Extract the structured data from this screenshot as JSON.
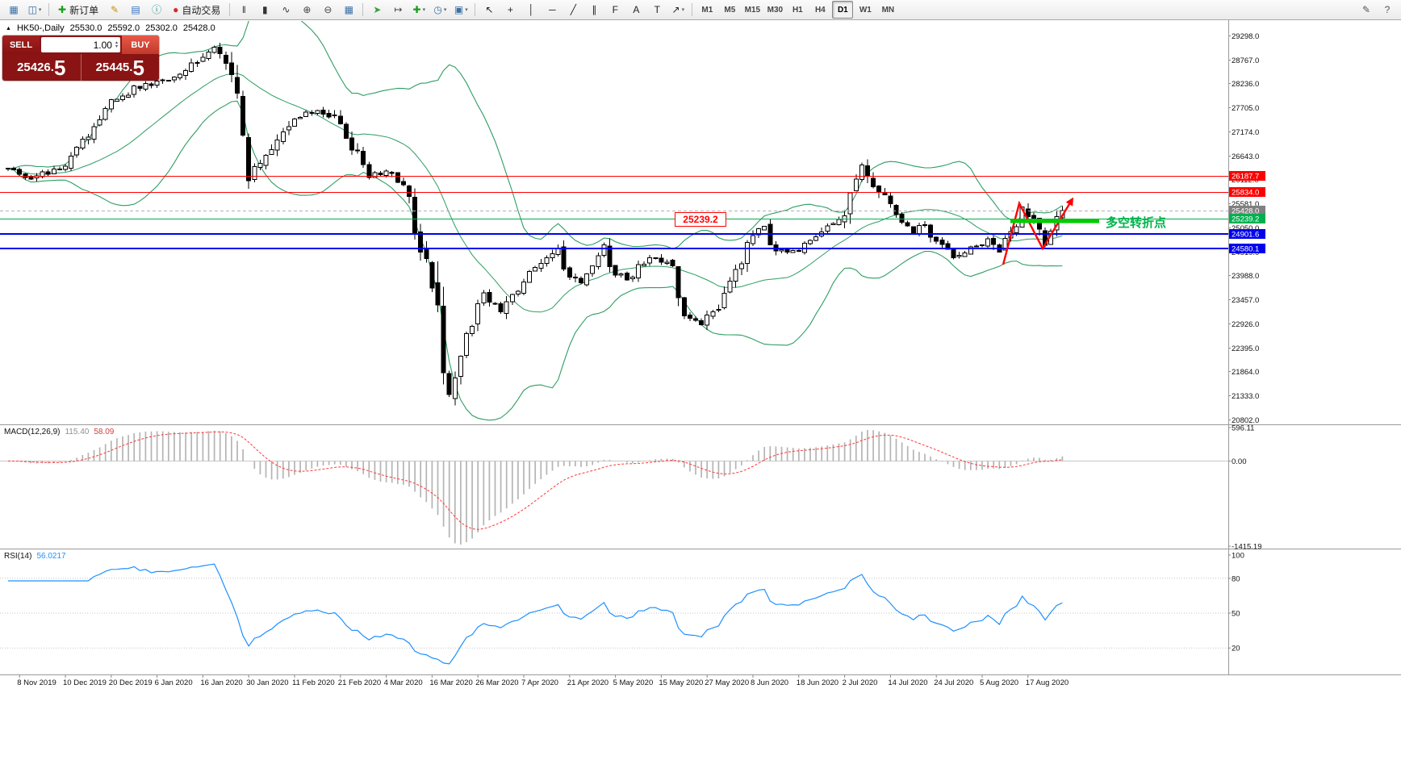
{
  "toolbar": {
    "caret_glyph": "▾",
    "items": [
      {
        "type": "btn",
        "name": "new-chart",
        "glyph": "▦",
        "color": "#3b6ea5"
      },
      {
        "type": "btn",
        "name": "profiles",
        "glyph": "◫",
        "color": "#3b6ea5",
        "caret": true
      },
      {
        "type": "sep"
      },
      {
        "type": "btn",
        "name": "new-order",
        "glyph": "✚",
        "color": "#18a018",
        "label": "新订单"
      },
      {
        "type": "btn",
        "name": "metaeditor",
        "glyph": "✎",
        "color": "#c79100"
      },
      {
        "type": "btn",
        "name": "market-watch",
        "glyph": "▤",
        "color": "#2f6fc4"
      },
      {
        "type": "btn",
        "name": "data-window",
        "glyph": "ⓘ",
        "color": "#1f8f8f"
      },
      {
        "type": "btn",
        "name": "autotrading",
        "glyph": "●",
        "color": "#d42a2a",
        "label": "自动交易"
      },
      {
        "type": "sep"
      },
      {
        "type": "btn",
        "name": "bar-chart-mode",
        "glyph": "‖",
        "color": "#333333"
      },
      {
        "type": "btn",
        "name": "candlestick-mode",
        "glyph": "▮",
        "color": "#333333"
      },
      {
        "type": "btn",
        "name": "line-chart-mode",
        "glyph": "∿",
        "color": "#333333"
      },
      {
        "type": "btn",
        "name": "zoom-in",
        "glyph": "⊕",
        "color": "#444444"
      },
      {
        "type": "btn",
        "name": "zoom-out",
        "glyph": "⊖",
        "color": "#444444"
      },
      {
        "type": "btn",
        "name": "tile-windows",
        "glyph": "▦",
        "color": "#3b6ea5"
      },
      {
        "type": "sep"
      },
      {
        "type": "btn",
        "name": "auto-scroll",
        "glyph": "➤",
        "color": "#3aa03a"
      },
      {
        "type": "btn",
        "name": "chart-shift",
        "glyph": "↦",
        "color": "#444444"
      },
      {
        "type": "btn",
        "name": "indicators",
        "glyph": "✚",
        "color": "#18a018",
        "caret": true
      },
      {
        "type": "btn",
        "name": "periods",
        "glyph": "◷",
        "color": "#3b6ea5",
        "caret": true
      },
      {
        "type": "btn",
        "name": "templates",
        "glyph": "▣",
        "color": "#3b6ea5",
        "caret": true
      },
      {
        "type": "sep"
      },
      {
        "type": "btn",
        "name": "cursor-tool",
        "glyph": "↖",
        "color": "#222222"
      },
      {
        "type": "btn",
        "name": "crosshair-tool",
        "glyph": "+",
        "color": "#222222"
      },
      {
        "type": "btn",
        "name": "vertical-line-tool",
        "glyph": "│",
        "color": "#222222"
      },
      {
        "type": "btn",
        "name": "horizontal-line-tool",
        "glyph": "─",
        "color": "#222222"
      },
      {
        "type": "btn",
        "name": "trendline-tool",
        "glyph": "╱",
        "color": "#222222"
      },
      {
        "type": "btn",
        "name": "channel-tool",
        "glyph": "∥",
        "color": "#222222"
      },
      {
        "type": "btn",
        "name": "fibonacci-tool",
        "glyph": "F",
        "color": "#222222"
      },
      {
        "type": "btn",
        "name": "text-tool",
        "glyph": "A",
        "color": "#222222"
      },
      {
        "type": "btn",
        "name": "label-tool",
        "glyph": "T",
        "color": "#222222"
      },
      {
        "type": "btn",
        "name": "arrows-tool",
        "glyph": "↗",
        "color": "#222222",
        "caret": true
      },
      {
        "type": "sep"
      }
    ],
    "timeframes": [
      "M1",
      "M5",
      "M15",
      "M30",
      "H1",
      "H4",
      "D1",
      "W1",
      "MN"
    ],
    "active_timeframe": "D1",
    "right_items": [
      {
        "type": "btn",
        "name": "edit",
        "glyph": "✎",
        "color": "#555555"
      },
      {
        "type": "btn",
        "name": "help",
        "glyph": "?",
        "color": "#555555"
      }
    ]
  },
  "chart_header": {
    "collapse_arrow": "▲",
    "symbol": "HK50-,Daily",
    "open": "25530.0",
    "high": "25592.0",
    "low": "25302.0",
    "close": "25428.0"
  },
  "trade_panel": {
    "sell_label": "SELL",
    "buy_label": "BUY",
    "volume": "1.00",
    "volume_up_glyph": "▴",
    "volume_down_glyph": "▾",
    "sell_price_base": "25426.",
    "sell_price_big": "5",
    "buy_price_base": "25445.",
    "buy_price_big": "5"
  },
  "indicator_labels": {
    "macd_name": "MACD(12,26,9)",
    "macd_value_main": "115.40",
    "macd_value_signal": "58.09",
    "rsi_name": "RSI(14)",
    "rsi_value": "56.0217"
  },
  "annotations": {
    "price_flag_label": "25239.2",
    "turning_point_text": "多空转折点"
  },
  "chart_data": {
    "type": "candlestick",
    "symbol": "HK50-",
    "period": "Daily",
    "ohlc_display": {
      "open": 25530.0,
      "high": 25592.0,
      "low": 25302.0,
      "close": 25428.0
    },
    "num_candles": 185,
    "last_close": 25428.0,
    "x_axis": {
      "labels": [
        "8 Nov 2019",
        "10 Dec 2019",
        "20 Dec 2019",
        "6 Jan 2020",
        "16 Jan 2020",
        "30 Jan 2020",
        "11 Feb 2020",
        "21 Feb 2020",
        "4 Mar 2020",
        "16 Mar 2020",
        "26 Mar 2020",
        "7 Apr 2020",
        "21 Apr 2020",
        "5 May 2020",
        "15 May 2020",
        "27 May 2020",
        "8 Jun 2020",
        "18 Jun 2020",
        "2 Jul 2020",
        "14 Jul 2020",
        "24 Jul 2020",
        "5 Aug 2020",
        "17 Aug 2020"
      ],
      "label_indices": [
        2,
        10,
        18,
        26,
        34,
        42,
        50,
        58,
        66,
        74,
        82,
        90,
        98,
        106,
        114,
        122,
        130,
        138,
        146,
        154,
        162,
        170,
        178
      ]
    },
    "y_axis": {
      "tick_labels": [
        "29298.0",
        "28767.0",
        "28236.0",
        "27705.0",
        "27174.0",
        "26643.0",
        "26112.0",
        "25581.0",
        "25050.0",
        "24519.0",
        "23988.0",
        "23457.0",
        "22926.0",
        "22395.0",
        "21864.0",
        "21333.0",
        "20802.0"
      ]
    },
    "close_anchors": [
      [
        0,
        26350
      ],
      [
        4,
        26150
      ],
      [
        10,
        26450
      ],
      [
        14,
        27100
      ],
      [
        18,
        27800
      ],
      [
        22,
        28150
      ],
      [
        26,
        28250
      ],
      [
        30,
        28450
      ],
      [
        34,
        28850
      ],
      [
        36,
        29000
      ],
      [
        38,
        28800
      ],
      [
        40,
        27900
      ],
      [
        42,
        26250
      ],
      [
        44,
        26500
      ],
      [
        47,
        27000
      ],
      [
        50,
        27450
      ],
      [
        54,
        27650
      ],
      [
        57,
        27500
      ],
      [
        60,
        26900
      ],
      [
        63,
        26200
      ],
      [
        66,
        26300
      ],
      [
        68,
        26150
      ],
      [
        70,
        25700
      ],
      [
        72,
        24600
      ],
      [
        74,
        23950
      ],
      [
        75,
        23100
      ],
      [
        76,
        21900
      ],
      [
        77,
        21300
      ],
      [
        79,
        22400
      ],
      [
        81,
        23000
      ],
      [
        83,
        23550
      ],
      [
        86,
        23200
      ],
      [
        89,
        23700
      ],
      [
        91,
        24100
      ],
      [
        94,
        24350
      ],
      [
        96,
        24550
      ],
      [
        98,
        24000
      ],
      [
        100,
        23850
      ],
      [
        102,
        24300
      ],
      [
        104,
        24600
      ],
      [
        106,
        24050
      ],
      [
        108,
        23900
      ],
      [
        110,
        24250
      ],
      [
        113,
        24400
      ],
      [
        116,
        24150
      ],
      [
        118,
        23150
      ],
      [
        121,
        22950
      ],
      [
        124,
        23350
      ],
      [
        127,
        24000
      ],
      [
        130,
        24900
      ],
      [
        132,
        25050
      ],
      [
        134,
        24550
      ],
      [
        137,
        24500
      ],
      [
        140,
        24800
      ],
      [
        143,
        25050
      ],
      [
        146,
        25350
      ],
      [
        148,
        26250
      ],
      [
        149,
        26450
      ],
      [
        151,
        26000
      ],
      [
        154,
        25500
      ],
      [
        156,
        25200
      ],
      [
        158,
        24950
      ],
      [
        160,
        25100
      ],
      [
        162,
        24750
      ],
      [
        165,
        24350
      ],
      [
        168,
        24550
      ],
      [
        171,
        24750
      ],
      [
        173,
        24450
      ],
      [
        175,
        24900
      ],
      [
        177,
        25500
      ],
      [
        179,
        25100
      ],
      [
        181,
        24700
      ],
      [
        183,
        25350
      ],
      [
        184,
        25428
      ]
    ],
    "overlays": {
      "bollinger": {
        "period": 20,
        "deviation": 2,
        "color": "#2e9e63"
      },
      "h_lines": [
        {
          "label": "26187.7",
          "price": 26187.7,
          "color": "#ff0000",
          "width": 1,
          "dash": null,
          "tag": "#ff0000"
        },
        {
          "label": "25834.0",
          "price": 25834.0,
          "color": "#ff0000",
          "width": 1,
          "dash": null,
          "tag": "#ff0000"
        },
        {
          "label": "25428.0",
          "price": 25428.0,
          "color": "#b0b0b0",
          "width": 1,
          "dash": "4 3",
          "tag": "#808080"
        },
        {
          "label": "25239.2",
          "price": 25239.2,
          "color": "#00b050",
          "width": 1,
          "dash": null,
          "tag": "#00b050"
        },
        {
          "label": "24901.6",
          "price": 24901.6,
          "color": "#0000ee",
          "width": 2,
          "dash": null,
          "tag": "#0000ee"
        },
        {
          "label": "24580.1",
          "price": 24580.1,
          "color": "#0000ee",
          "width": 2,
          "dash": null,
          "tag": "#0000ee"
        }
      ],
      "zigzag": {
        "color": "#ff0000",
        "points": [
          [
            1243,
            328
          ],
          [
            1263,
            252
          ],
          [
            1292,
            308
          ],
          [
            1328,
            248
          ]
        ]
      },
      "turning_line": {
        "color": "#00cc00",
        "width": 5,
        "from": [
          1252,
          274
        ],
        "to": [
          1362,
          274
        ]
      }
    },
    "macd": {
      "name": "MACD(12,26,9)",
      "value_main": 115.4,
      "value_signal": 58.09,
      "ticks": [
        "596.11",
        "0.00",
        "-1415.19"
      ],
      "histogram_color": "#b4b4b4",
      "signal_color": "#ff3838"
    },
    "rsi": {
      "name": "RSI(14)",
      "period": 14,
      "value": 56.0217,
      "ticks": [
        "100",
        "80",
        "50",
        "20"
      ],
      "levels": [
        80,
        50,
        20
      ],
      "color": "#1e90ff"
    }
  }
}
